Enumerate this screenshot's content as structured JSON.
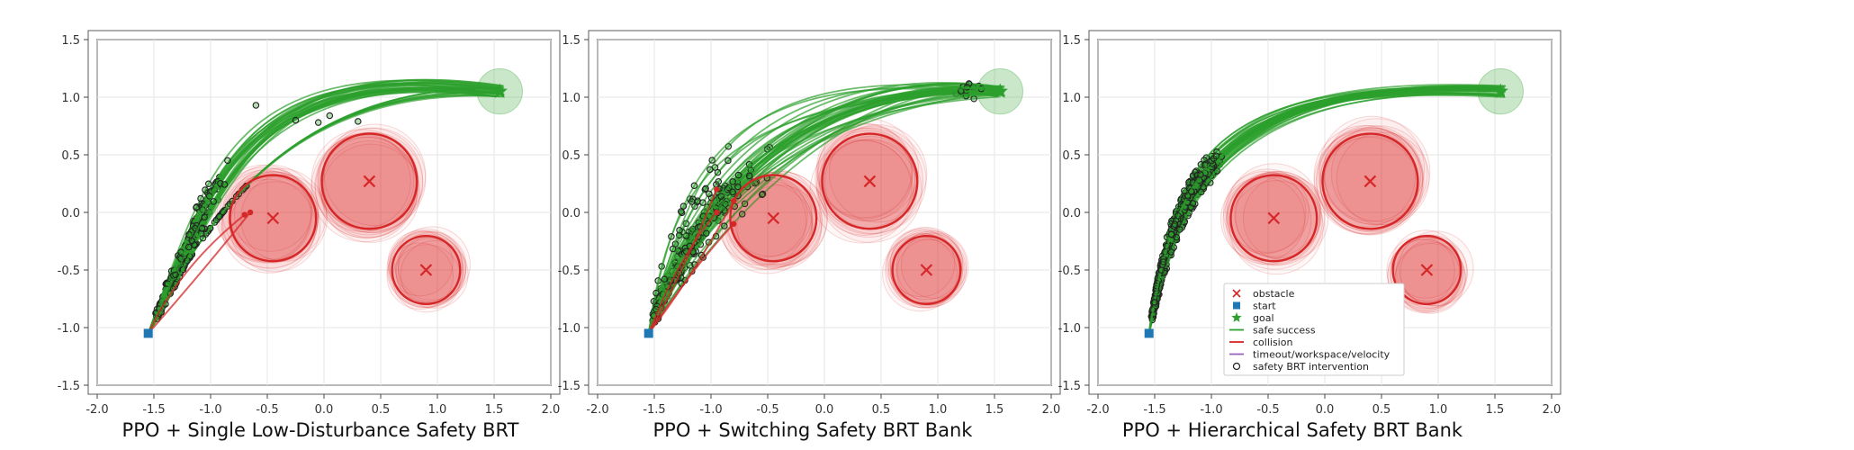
{
  "captions": [
    "PPO + Single Low-Disturbance Safety BRT",
    "PPO + Switching Safety BRT Bank",
    "PPO + Hierarchical Safety BRT Bank"
  ],
  "legend": {
    "obstacle": "obstacle",
    "start": "start",
    "goal": "goal",
    "safe_success": "safe success",
    "collision": "collision",
    "timeout": "timeout/workspace/velocity",
    "intervention": "safety BRT intervention"
  },
  "colors": {
    "safe_success": "#2ca02c",
    "collision": "#d62728",
    "timeout": "#9467bd",
    "start": "#1f77b4",
    "obstacle": "#d62728",
    "goal": "#2ca02c"
  },
  "chart_data": [
    {
      "type": "line",
      "title": "PPO + Single Low-Disturbance Safety BRT",
      "xlim": [
        -2.0,
        2.0
      ],
      "ylim": [
        -1.5,
        1.5
      ],
      "xticks": [
        "-2.0",
        "-1.5",
        "-1.0",
        "-0.5",
        "0.0",
        "0.5",
        "1.0",
        "1.5",
        "2.0"
      ],
      "yticks": [
        "-1.5",
        "-1.0",
        "-0.5",
        "0.0",
        "0.5",
        "1.0",
        "1.5"
      ],
      "grid": true,
      "start": [
        -1.55,
        -1.05
      ],
      "goal": [
        1.55,
        1.05
      ],
      "obstacles": [
        {
          "x": -0.45,
          "y": -0.05,
          "r": 0.38
        },
        {
          "x": 0.4,
          "y": 0.27,
          "r": 0.42
        },
        {
          "x": 0.9,
          "y": -0.5,
          "r": 0.3
        }
      ],
      "series": [
        {
          "name": "safe success",
          "count": 40
        },
        {
          "name": "collision",
          "count": 2
        },
        {
          "name": "safety BRT intervention"
        }
      ]
    },
    {
      "type": "line",
      "title": "PPO + Switching Safety BRT Bank",
      "xlim": [
        -2.0,
        2.0
      ],
      "ylim": [
        -1.5,
        1.5
      ],
      "xticks": [
        "-2.0",
        "-1.5",
        "-1.0",
        "-0.5",
        "0.0",
        "0.5",
        "1.0",
        "1.5",
        "2.0"
      ],
      "yticks": [
        "-1.5",
        "-1.0",
        "-0.5",
        "0.0",
        "0.5",
        "1.0",
        "1.5"
      ],
      "grid": true,
      "start": [
        -1.55,
        -1.05
      ],
      "goal": [
        1.55,
        1.05
      ],
      "obstacles": [
        {
          "x": -0.45,
          "y": -0.05,
          "r": 0.38
        },
        {
          "x": 0.4,
          "y": 0.27,
          "r": 0.42
        },
        {
          "x": 0.9,
          "y": -0.5,
          "r": 0.3
        }
      ],
      "series": [
        {
          "name": "safe success",
          "count": 40
        },
        {
          "name": "collision",
          "count": 4
        },
        {
          "name": "safety BRT intervention"
        }
      ]
    },
    {
      "type": "line",
      "title": "PPO + Hierarchical Safety BRT Bank",
      "xlim": [
        -2.0,
        2.0
      ],
      "ylim": [
        -1.5,
        1.5
      ],
      "xticks": [
        "-2.0",
        "-1.5",
        "-1.0",
        "-0.5",
        "0.0",
        "0.5",
        "1.0",
        "1.5",
        "2.0"
      ],
      "yticks": [
        "-1.5",
        "-1.0",
        "-0.5",
        "0.0",
        "0.5",
        "1.0",
        "1.5"
      ],
      "grid": true,
      "legend_position": "lower-right",
      "start": [
        -1.55,
        -1.05
      ],
      "goal": [
        1.55,
        1.05
      ],
      "obstacles": [
        {
          "x": -0.45,
          "y": -0.05,
          "r": 0.38
        },
        {
          "x": 0.4,
          "y": 0.27,
          "r": 0.42
        },
        {
          "x": 0.9,
          "y": -0.5,
          "r": 0.3
        }
      ],
      "series": [
        {
          "name": "safe success",
          "count": 40
        },
        {
          "name": "safety BRT intervention"
        }
      ]
    }
  ]
}
